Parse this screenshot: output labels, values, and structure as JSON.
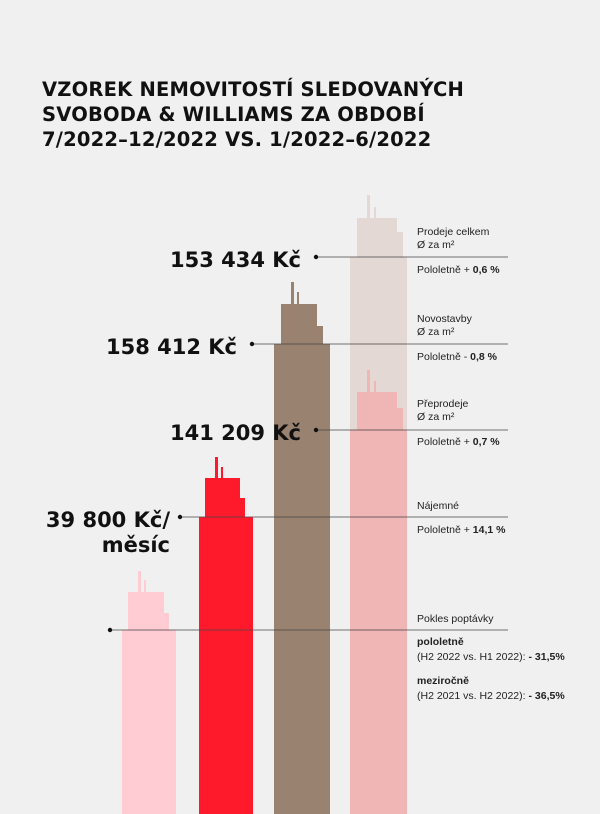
{
  "title": {
    "line1": "VZOREK NEMOVITOSTÍ SLEDOVANÝCH",
    "line2": "SVOBODA & WILLIAMS ZA OBDOBÍ",
    "line3": "7/2022–12/2022 VS. 1/2022–6/2022"
  },
  "colors": {
    "background": "#f0f0f0",
    "demand": "#ffccd3",
    "rent": "#ff1a2b",
    "new_builds": "#998270",
    "resales": "#f0b5b5",
    "total_sales": "#e3d8d3"
  },
  "chart_data": {
    "type": "bar",
    "categories": [
      "Pokles poptávky",
      "Nájemné",
      "Novostavby",
      "Prodeje celkem",
      "Přeprodeje"
    ],
    "series": [
      {
        "name": "",
        "values": [
          null,
          39800,
          158412,
          153434,
          141209
        ]
      }
    ],
    "value_labels": {
      "total_sales": "153 434 Kč",
      "new_builds": "158 412 Kč",
      "resales": "141 209 Kč",
      "rent_line1": "39 800 Kč/",
      "rent_line2": "měsíc"
    },
    "annotations": {
      "total_sales": {
        "name": "Prodeje celkem",
        "unit": "Ø za m²",
        "change_prefix": "Pololetně + ",
        "change_value": "0,6 %"
      },
      "new_builds": {
        "name": "Novostavby",
        "unit": "Ø za m²",
        "change_prefix": "Pololetně - ",
        "change_value": "0,8 %"
      },
      "resales": {
        "name": "Přeprodeje",
        "unit": "Ø za m²",
        "change_prefix": "Pololetně + ",
        "change_value": "0,7 %"
      },
      "rent": {
        "name": "Nájemné",
        "change_prefix": "Pololetně + ",
        "change_value": "14,1 %"
      },
      "demand": {
        "name": "Pokles poptávky",
        "half_year_label": "pololetně",
        "half_year_detail_prefix": "(H2 2022 vs. H1 2022): ",
        "half_year_value": "- 31,5%",
        "year_label": "meziročně",
        "year_detail_prefix": "(H2 2021 vs. H2 2022): ",
        "year_value": "- 36,5%"
      }
    },
    "changes_percent": {
      "total_sales": 0.6,
      "new_builds": -0.8,
      "resales": 0.7,
      "rent": 14.1,
      "demand_half_year": -31.5,
      "demand_year": -36.5
    },
    "legend": "none",
    "grid": false
  }
}
